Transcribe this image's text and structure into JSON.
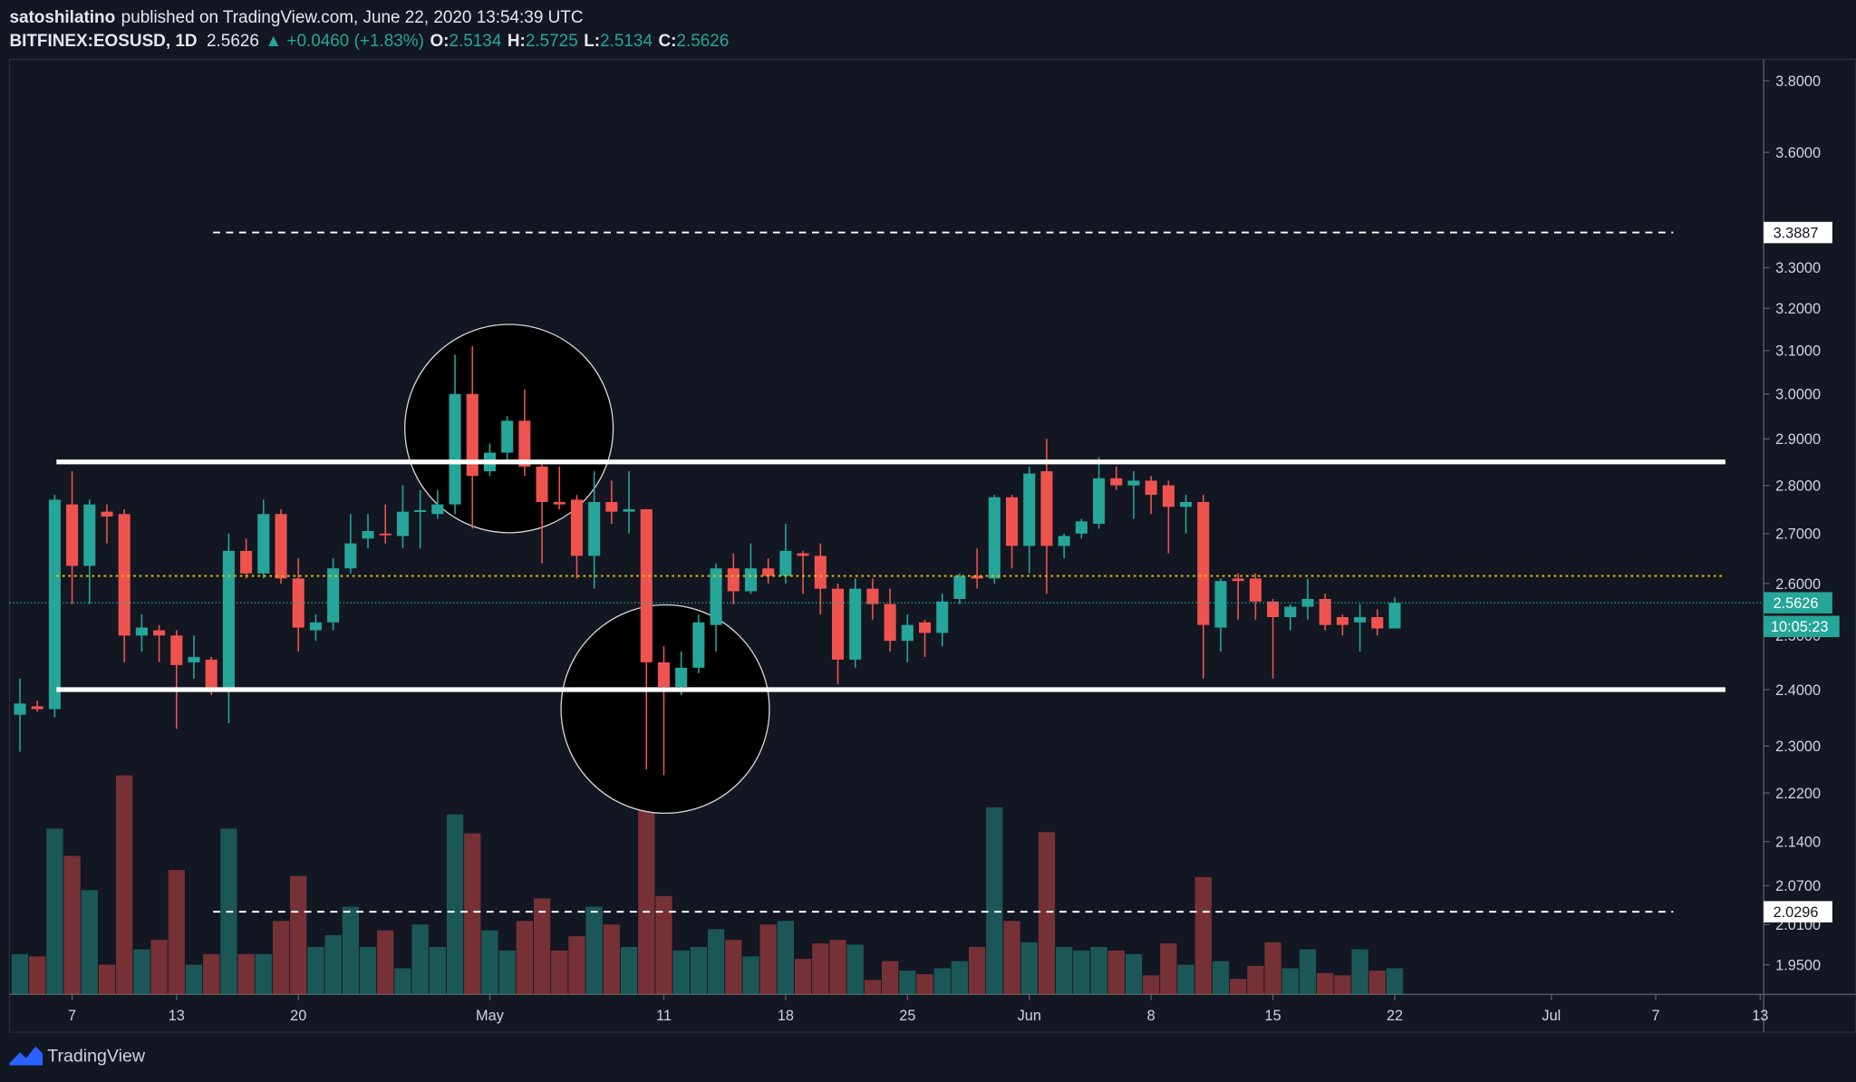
{
  "header": {
    "author": "satoshilatino",
    "published": "published on TradingView.com, June 22, 2020 13:54:39 UTC",
    "symbol": "BITFINEX:EOSUSD, 1D",
    "last": 2.5626,
    "change": "▲ +0.0460 (+1.83%)",
    "o_label": "O:",
    "o": 2.5134,
    "h_label": "H:",
    "h": 2.5725,
    "l_label": "L:",
    "l": 2.5134,
    "c_label": "C:",
    "c": 2.5626
  },
  "footer": {
    "brand": "TradingView"
  },
  "chart_data": {
    "type": "candlestick",
    "log": true,
    "up_color": "#26a69a",
    "down_color": "#ef5350",
    "x": [
      0,
      1,
      2,
      3,
      4,
      5,
      6,
      7,
      8,
      9,
      10,
      11,
      12,
      13,
      14,
      15,
      16,
      17,
      18,
      19,
      20,
      21,
      22,
      23,
      24,
      25,
      26,
      27,
      28,
      29,
      30,
      31,
      32,
      33,
      34,
      35,
      36,
      37,
      38,
      39,
      40,
      41,
      42,
      43,
      44,
      45,
      46,
      47,
      48,
      49,
      50,
      51,
      52,
      53,
      54,
      55,
      56,
      57,
      58,
      59,
      60,
      61,
      62,
      63,
      64,
      65,
      66,
      67,
      68,
      69,
      70,
      71,
      72,
      73,
      74,
      75,
      76,
      77,
      78,
      79
    ],
    "open": [
      2.355,
      2.37,
      2.365,
      2.76,
      2.635,
      2.745,
      2.74,
      2.5,
      2.51,
      2.5,
      2.45,
      2.455,
      2.4,
      2.665,
      2.62,
      2.74,
      2.61,
      2.51,
      2.525,
      2.63,
      2.69,
      2.7,
      2.695,
      2.745,
      2.74,
      2.76,
      3.0,
      2.83,
      2.87,
      2.94,
      2.84,
      2.765,
      2.77,
      2.655,
      2.765,
      2.745,
      2.75,
      2.45,
      2.405,
      2.44,
      2.52,
      2.63,
      2.585,
      2.63,
      2.615,
      2.66,
      2.655,
      2.59,
      2.455,
      2.59,
      2.56,
      2.49,
      2.525,
      2.505,
      2.57,
      2.615,
      2.61,
      2.775,
      2.675,
      2.83,
      2.675,
      2.7,
      2.72,
      2.815,
      2.8,
      2.81,
      2.8,
      2.755,
      2.765,
      2.515,
      2.61,
      2.61,
      2.565,
      2.535,
      2.555,
      2.57,
      2.535,
      2.525,
      2.535,
      2.5134
    ],
    "high": [
      2.42,
      2.38,
      2.78,
      2.83,
      2.77,
      2.76,
      2.75,
      2.54,
      2.52,
      2.51,
      2.5,
      2.46,
      2.7,
      2.69,
      2.77,
      2.75,
      2.65,
      2.54,
      2.65,
      2.74,
      2.74,
      2.76,
      2.8,
      2.79,
      2.79,
      3.09,
      3.11,
      2.89,
      2.95,
      3.01,
      2.85,
      2.84,
      2.78,
      2.83,
      2.81,
      2.83,
      2.75,
      2.48,
      2.47,
      2.54,
      2.64,
      2.66,
      2.68,
      2.65,
      2.72,
      2.665,
      2.68,
      2.6,
      2.61,
      2.61,
      2.59,
      2.54,
      2.53,
      2.58,
      2.62,
      2.67,
      2.78,
      2.78,
      2.84,
      2.9,
      2.7,
      2.73,
      2.86,
      2.84,
      2.83,
      2.82,
      2.81,
      2.78,
      2.78,
      2.61,
      2.62,
      2.62,
      2.57,
      2.56,
      2.61,
      2.58,
      2.54,
      2.56,
      2.55,
      2.5725
    ],
    "low": [
      2.29,
      2.36,
      2.35,
      2.56,
      2.56,
      2.68,
      2.45,
      2.47,
      2.45,
      2.33,
      2.42,
      2.39,
      2.34,
      2.61,
      2.61,
      2.6,
      2.47,
      2.49,
      2.51,
      2.62,
      2.67,
      2.68,
      2.67,
      2.67,
      2.73,
      2.74,
      2.71,
      2.82,
      2.85,
      2.82,
      2.64,
      2.75,
      2.61,
      2.59,
      2.72,
      2.7,
      2.26,
      2.25,
      2.39,
      2.43,
      2.47,
      2.56,
      2.58,
      2.6,
      2.6,
      2.58,
      2.54,
      2.41,
      2.44,
      2.53,
      2.47,
      2.45,
      2.46,
      2.48,
      2.56,
      2.59,
      2.6,
      2.63,
      2.62,
      2.58,
      2.65,
      2.69,
      2.71,
      2.79,
      2.73,
      2.74,
      2.66,
      2.7,
      2.42,
      2.47,
      2.53,
      2.53,
      2.42,
      2.51,
      2.53,
      2.51,
      2.5,
      2.47,
      2.5,
      2.5134
    ],
    "close": [
      2.375,
      2.365,
      2.77,
      2.635,
      2.76,
      2.735,
      2.5,
      2.515,
      2.5,
      2.445,
      2.46,
      2.4,
      2.665,
      2.62,
      2.74,
      2.61,
      2.515,
      2.525,
      2.63,
      2.68,
      2.705,
      2.697,
      2.745,
      2.748,
      2.76,
      3.0,
      2.82,
      2.87,
      2.94,
      2.84,
      2.765,
      2.76,
      2.655,
      2.765,
      2.745,
      2.75,
      2.45,
      2.405,
      2.44,
      2.525,
      2.63,
      2.585,
      2.63,
      2.615,
      2.665,
      2.655,
      2.59,
      2.455,
      2.59,
      2.56,
      2.49,
      2.52,
      2.505,
      2.565,
      2.615,
      2.61,
      2.775,
      2.675,
      2.825,
      2.675,
      2.695,
      2.725,
      2.815,
      2.8,
      2.81,
      2.78,
      2.755,
      2.765,
      2.52,
      2.605,
      2.605,
      2.565,
      2.535,
      2.555,
      2.57,
      2.52,
      2.52,
      2.535,
      2.5134,
      2.5626
    ],
    "volume": [
      34,
      32,
      140,
      117,
      88,
      25,
      185,
      38,
      46,
      105,
      25,
      34,
      140,
      34,
      34,
      62,
      100,
      40,
      50,
      74,
      40,
      54,
      22,
      59,
      40,
      152,
      136,
      54,
      37,
      62,
      81,
      37,
      49,
      74,
      59,
      40,
      198,
      83,
      37,
      40,
      55,
      46,
      32,
      59,
      62,
      30,
      43,
      46,
      42,
      12,
      28,
      20,
      17,
      22,
      28,
      40,
      158,
      62,
      44,
      137,
      40,
      37,
      40,
      37,
      34,
      16,
      43,
      25,
      99,
      28,
      13,
      24,
      44,
      22,
      38,
      18,
      16,
      38,
      20,
      22
    ],
    "xlim": [
      -0.6,
      100.2
    ],
    "xticks": [
      {
        "value": 3,
        "label": "7"
      },
      {
        "value": 9,
        "label": "13"
      },
      {
        "value": 16,
        "label": "20"
      },
      {
        "value": 27,
        "label": "May"
      },
      {
        "value": 37,
        "label": "11"
      },
      {
        "value": 44,
        "label": "18"
      },
      {
        "value": 51,
        "label": "25"
      },
      {
        "value": 58,
        "label": "Jun"
      },
      {
        "value": 65,
        "label": "8"
      },
      {
        "value": 72,
        "label": "15"
      },
      {
        "value": 79,
        "label": "22"
      },
      {
        "value": 88,
        "label": "Jul"
      },
      {
        "value": 94,
        "label": "7"
      },
      {
        "value": 100,
        "label": "13"
      }
    ],
    "ylim": [
      1.907,
      3.862
    ],
    "yticks": [
      {
        "value": 1.95,
        "label": "1.9500"
      },
      {
        "value": 2.01,
        "label": "2.0100"
      },
      {
        "value": 2.07,
        "label": "2.0700"
      },
      {
        "value": 2.14,
        "label": "2.1400"
      },
      {
        "value": 2.22,
        "label": "2.2200"
      },
      {
        "value": 2.3,
        "label": "2.3000"
      },
      {
        "value": 2.4,
        "label": "2.4000"
      },
      {
        "value": 2.5,
        "label": "2.5000"
      },
      {
        "value": 2.6,
        "label": "2.6000"
      },
      {
        "value": 2.7,
        "label": "2.7000"
      },
      {
        "value": 2.8,
        "label": "2.8000"
      },
      {
        "value": 2.9,
        "label": "2.9000"
      },
      {
        "value": 3.0,
        "label": "3.0000"
      },
      {
        "value": 3.1,
        "label": "3.1000"
      },
      {
        "value": 3.2,
        "label": "3.2000"
      },
      {
        "value": 3.3,
        "label": "3.3000"
      },
      {
        "value": 3.6,
        "label": "3.6000"
      },
      {
        "value": 3.8,
        "label": "3.8000"
      }
    ],
    "levels": [
      {
        "value": 2.85,
        "color": "#ffffff",
        "style": "solid",
        "x_from": 2.1,
        "x_to": 98.0
      },
      {
        "value": 2.4,
        "color": "#ffffff",
        "style": "solid",
        "x_from": 2.1,
        "x_to": 98.0
      },
      {
        "value": 2.615,
        "color": "#f0c30f",
        "style": "dotted",
        "x_from": 2.1,
        "x_to": 98.0
      },
      {
        "value": 3.3887,
        "color": "#ffffff",
        "style": "dashed",
        "x_from": 11.1,
        "x_to": 95.0,
        "badge": true
      },
      {
        "value": 2.0296,
        "color": "#ffffff",
        "style": "dashed",
        "x_from": 11.1,
        "x_to": 95.0,
        "badge": true
      }
    ],
    "last_price": {
      "value": 2.5626,
      "countdown": "10:05:23",
      "color": "#26a69a"
    }
  }
}
